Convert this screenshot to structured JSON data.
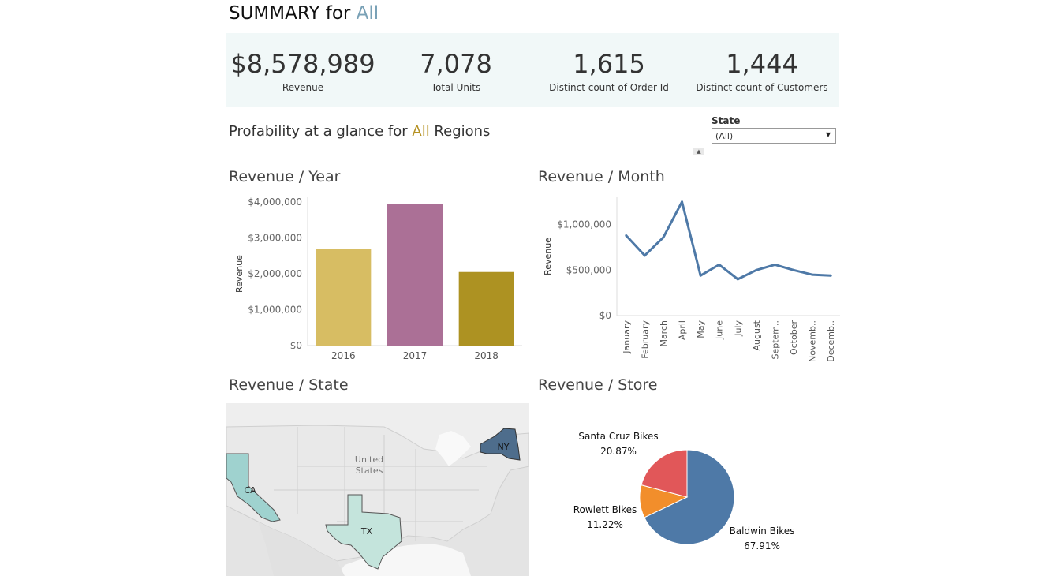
{
  "header": {
    "title_prefix": "SUMMARY for ",
    "title_accent": "All"
  },
  "kpis": [
    {
      "value": "$8,578,989",
      "label": "Revenue"
    },
    {
      "value": "7,078",
      "label": "Total Units"
    },
    {
      "value": "1,615",
      "label": "Distinct count of Order Id"
    },
    {
      "value": "1,444",
      "label": "Distinct count of Customers"
    }
  ],
  "subtitle": {
    "prefix": "Profability at a glance for ",
    "accent": "All",
    "suffix": " Regions"
  },
  "filter": {
    "label": "State",
    "value": "(All)",
    "caret": "▼",
    "handle": "▲"
  },
  "sections": {
    "year": "Revenue / Year",
    "month": "Revenue / Month",
    "state": "Revenue / State",
    "store": "Revenue / Store"
  },
  "colors": {
    "accent_blue": "#79a1b6",
    "accent_gold": "#b59122",
    "kpi_band": "#f1f8f8",
    "line": "#4e79a7"
  },
  "chart_data": [
    {
      "type": "bar",
      "title": "Revenue / Year",
      "ylabel": "Revenue",
      "xlabel": "",
      "categories": [
        "2016",
        "2017",
        "2018"
      ],
      "values": [
        2700000,
        3950000,
        2050000
      ],
      "colors": [
        "#d7bd63",
        "#ab7096",
        "#ad9222"
      ],
      "ylim": [
        0,
        4000000
      ],
      "yticks": [
        0,
        1000000,
        2000000,
        3000000,
        4000000
      ],
      "ytick_labels": [
        "$0",
        "$1,000,000",
        "$2,000,000",
        "$3,000,000",
        "$4,000,000"
      ]
    },
    {
      "type": "line",
      "title": "Revenue / Month",
      "ylabel": "Revenue",
      "xlabel": "",
      "categories": [
        "January",
        "February",
        "March",
        "April",
        "May",
        "June",
        "July",
        "August",
        "Septem..",
        "October",
        "Novemb..",
        "Decemb.."
      ],
      "values": [
        880000,
        660000,
        860000,
        1250000,
        440000,
        560000,
        400000,
        500000,
        560000,
        500000,
        450000,
        440000
      ],
      "ylim": [
        0,
        1300000
      ],
      "yticks": [
        0,
        500000,
        1000000
      ],
      "ytick_labels": [
        "$0",
        "$500,000",
        "$1,000,000"
      ]
    },
    {
      "type": "map",
      "title": "Revenue / State",
      "regions": [
        {
          "name": "CA",
          "color": "#9fd2cf"
        },
        {
          "name": "TX",
          "color": "#c4e4dc"
        },
        {
          "name": "NY",
          "color": "#4e6d8c"
        }
      ],
      "map_label": [
        "United",
        "States"
      ]
    },
    {
      "type": "pie",
      "title": "Revenue / Store",
      "slices": [
        {
          "name": "Baldwin Bikes",
          "pct_label": "67.91%",
          "value": 67.91,
          "color": "#4e79a7"
        },
        {
          "name": "Rowlett Bikes",
          "pct_label": "11.22%",
          "value": 11.22,
          "color": "#f28e2b"
        },
        {
          "name": "Santa Cruz Bikes",
          "pct_label": "20.87%",
          "value": 20.87,
          "color": "#e15759"
        }
      ]
    }
  ]
}
